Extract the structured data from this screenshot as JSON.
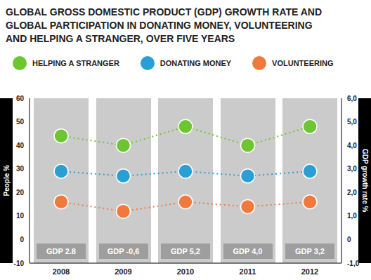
{
  "chart_data": {
    "type": "line",
    "title": "GLOBAL GROSS DOMESTIC PRODUCT (GDP) GROWTH RATE AND GLOBAL PARTICIPATION IN DONATING MONEY, VOLUNTEERING AND HELPING A STRANGER, OVER FIVE YEARS",
    "categories": [
      "2008",
      "2009",
      "2010",
      "2011",
      "2012"
    ],
    "series": [
      {
        "name": "HELPING A STRANGER",
        "color": "#6cc531",
        "values": [
          44,
          40,
          48,
          40,
          48
        ]
      },
      {
        "name": "DONATING MONEY",
        "color": "#2a9fd6",
        "values": [
          29,
          27,
          29,
          27,
          29
        ]
      },
      {
        "name": "VOLUNTEERING",
        "color": "#f07a3e",
        "values": [
          16,
          12,
          16,
          14,
          16
        ]
      }
    ],
    "y_label": "People %",
    "y2_label": "GDP growth rate %",
    "ylim": [
      -10,
      60
    ],
    "yticks": [
      -10,
      0,
      10,
      20,
      30,
      40,
      50,
      60
    ],
    "y2lim": [
      -1,
      6
    ],
    "y2ticks": [
      {
        "value": -1,
        "label": "-1,0"
      },
      0,
      {
        "value": 1,
        "label": "1,0"
      },
      {
        "value": 2,
        "label": "2,0"
      },
      {
        "value": 3,
        "label": "3,0"
      },
      {
        "value": 4,
        "label": "4,0"
      },
      {
        "value": 5,
        "label": "5,0"
      },
      {
        "value": 6,
        "label": "6,0"
      }
    ],
    "annotations": [
      "GDP 2.8",
      "GDP -0,6",
      "GDP 5,2",
      "GDP 4,0",
      "GDP 3,2"
    ],
    "marker": "circle",
    "line_style": "dotted",
    "grid": false
  }
}
